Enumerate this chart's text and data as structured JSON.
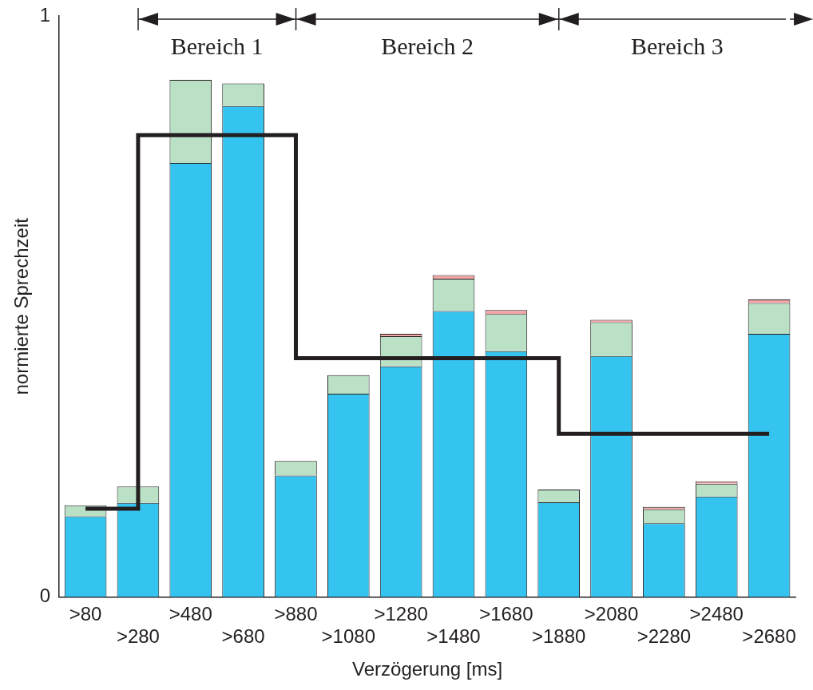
{
  "chart_data": {
    "type": "bar",
    "stacked": true,
    "xlabel": "Verzögerung [ms]",
    "ylabel": "normierte Sprechzeit",
    "categories": [
      ">80",
      ">280",
      ">480",
      ">680",
      ">880",
      ">1080",
      ">1280",
      ">1480",
      ">1680",
      ">1880",
      ">2080",
      ">2280",
      ">2480",
      ">2680"
    ],
    "series": [
      {
        "color": "#35c4f0",
        "values": [
          0.139,
          0.162,
          0.747,
          0.845,
          0.209,
          0.35,
          0.397,
          0.492,
          0.423,
          0.163,
          0.415,
          0.127,
          0.173,
          0.453
        ]
      },
      {
        "color": "#bae0c5",
        "values": [
          0.019,
          0.028,
          0.143,
          0.039,
          0.025,
          0.032,
          0.052,
          0.056,
          0.064,
          0.022,
          0.058,
          0.024,
          0.022,
          0.053
        ]
      },
      {
        "color": "#f4a6a6",
        "values": [
          null,
          null,
          null,
          null,
          null,
          null,
          0.004,
          0.006,
          0.007,
          null,
          0.004,
          0.004,
          0.004,
          0.006
        ]
      },
      {
        "type": "step",
        "color": "#231f20",
        "values": [
          0.152,
          0.795,
          0.795,
          0.795,
          0.411,
          0.411,
          0.411,
          0.411,
          0.411,
          0.281,
          0.281,
          0.281,
          0.281,
          0.281
        ]
      }
    ],
    "annotations": [
      "Bereich 1",
      "Bereich 2",
      "Bereich 3"
    ],
    "ylim": [
      0,
      1
    ],
    "yticks": [
      0,
      1
    ],
    "grid": false,
    "legend": false
  }
}
